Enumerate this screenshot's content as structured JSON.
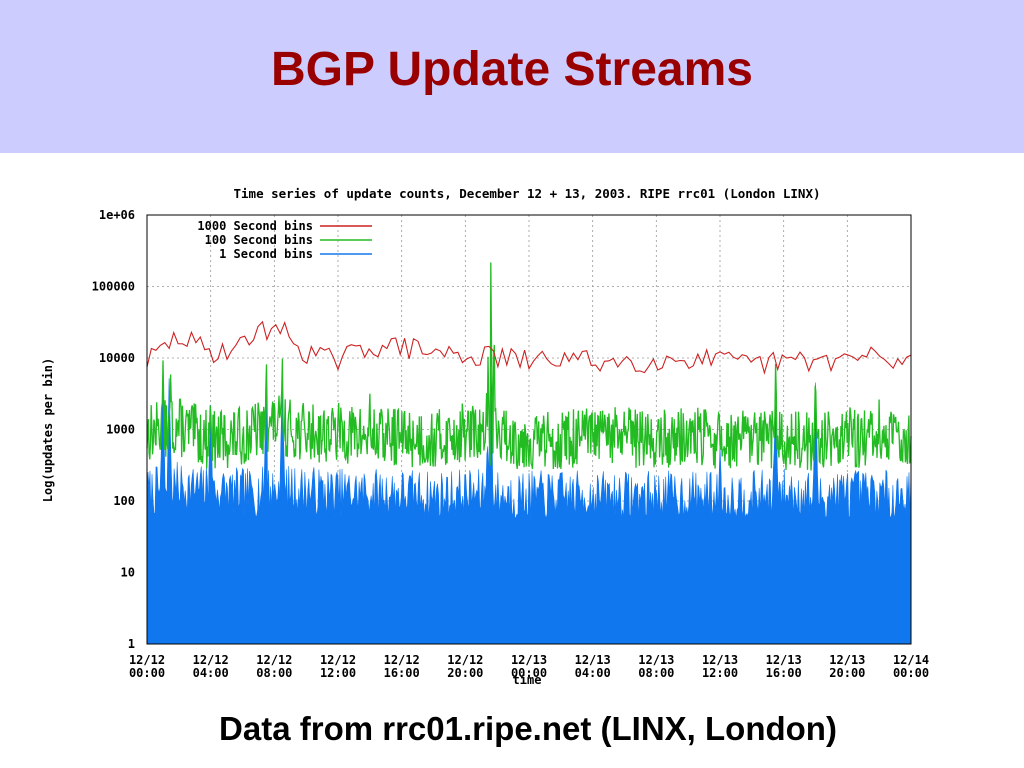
{
  "slide": {
    "title": "BGP Update Streams",
    "caption": "Data from rrc01.ripe.net (LINX, London)"
  },
  "colors": {
    "title_band": "#ccccff",
    "title_text": "#990000",
    "series_1000": "#cc2222",
    "series_100": "#22bb22",
    "series_1": "#1177ee"
  },
  "chart_data": {
    "type": "line",
    "title": "Time series of update counts, December 12 + 13, 2003.  RIPE rrc01 (London LINX)",
    "xlabel": "time",
    "ylabel": "Log(updates per bin)",
    "yscale": "log",
    "ylim": [
      1,
      1000000
    ],
    "yticks": [
      "1e+06",
      "100000",
      "10000",
      "1000",
      "100",
      "10",
      "1"
    ],
    "xlim": [
      "2003-12-12 00:00",
      "2003-12-14 00:00"
    ],
    "xticks": [
      [
        "12/12",
        "00:00"
      ],
      [
        "12/12",
        "04:00"
      ],
      [
        "12/12",
        "08:00"
      ],
      [
        "12/12",
        "12:00"
      ],
      [
        "12/12",
        "16:00"
      ],
      [
        "12/12",
        "20:00"
      ],
      [
        "12/13",
        "00:00"
      ],
      [
        "12/13",
        "04:00"
      ],
      [
        "12/13",
        "08:00"
      ],
      [
        "12/13",
        "12:00"
      ],
      [
        "12/13",
        "16:00"
      ],
      [
        "12/13",
        "20:00"
      ],
      [
        "12/14",
        "00:00"
      ]
    ],
    "grid": true,
    "legend_position": "top-left",
    "hours": [
      0,
      2,
      4,
      6,
      8,
      10,
      12,
      14,
      16,
      18,
      20,
      22,
      24,
      26,
      28,
      30,
      32,
      34,
      36,
      38,
      40,
      42,
      44,
      46,
      48
    ],
    "series": [
      {
        "name": "1000 Second bins",
        "values": [
          9000,
          20000,
          12000,
          15000,
          30000,
          12000,
          9000,
          15000,
          14000,
          12000,
          11000,
          10000,
          9000,
          10000,
          9000,
          9000,
          9000,
          10000,
          9000,
          8000,
          9000,
          9000,
          10000,
          9000,
          9000
        ],
        "spikes": [
          [
            1.0,
            32000
          ],
          [
            7.0,
            35000
          ],
          [
            8.5,
            36000
          ],
          [
            16.5,
            20000
          ],
          [
            21.0,
            30000
          ],
          [
            21.6,
            200000
          ],
          [
            22.1,
            25000
          ],
          [
            39.5,
            30000
          ],
          [
            42.0,
            28000
          ],
          [
            45.5,
            18000
          ]
        ]
      },
      {
        "name": "100 Second bins",
        "values": [
          900,
          1100,
          700,
          800,
          1200,
          900,
          900,
          800,
          800,
          700,
          900,
          800,
          700,
          700,
          800,
          800,
          700,
          800,
          700,
          700,
          700,
          700,
          800,
          700,
          800
        ],
        "spikes": [
          [
            1.0,
            10000
          ],
          [
            1.5,
            9000
          ],
          [
            4.0,
            6000
          ],
          [
            7.5,
            12000
          ],
          [
            8.5,
            10000
          ],
          [
            14.0,
            5000
          ],
          [
            21.4,
            40000
          ],
          [
            21.6,
            180000
          ],
          [
            21.8,
            35000
          ],
          [
            39.5,
            12000
          ],
          [
            42.0,
            10000
          ],
          [
            46.0,
            3000
          ]
        ]
      },
      {
        "name": "1 Second bins",
        "values": [
          130,
          160,
          140,
          130,
          140,
          140,
          130,
          130,
          130,
          120,
          130,
          120,
          120,
          120,
          120,
          120,
          120,
          120,
          120,
          120,
          130,
          120,
          130,
          120,
          130
        ],
        "spikes": [
          [
            1.0,
            6000
          ],
          [
            1.4,
            5000
          ],
          [
            4.0,
            3000
          ],
          [
            7.5,
            8000
          ],
          [
            8.5,
            6000
          ],
          [
            21.4,
            1000
          ],
          [
            21.6,
            8000
          ],
          [
            36.0,
            800
          ],
          [
            39.5,
            4000
          ],
          [
            42.0,
            5000
          ]
        ]
      }
    ]
  }
}
